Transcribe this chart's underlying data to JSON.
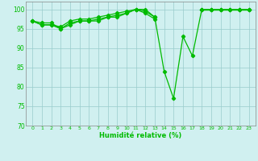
{
  "series": [
    [
      97,
      96,
      96,
      95,
      96,
      97,
      97,
      97,
      98,
      98,
      99,
      100,
      100,
      98,
      84,
      77,
      93,
      88,
      100,
      100,
      100,
      100,
      100,
      100
    ],
    [
      97,
      96,
      96,
      95.5,
      97,
      97.5,
      97.5,
      98,
      98.5,
      99,
      99.5,
      100,
      99,
      97.5,
      null,
      null,
      null,
      null,
      100,
      100,
      100,
      100,
      100,
      100
    ],
    [
      97,
      96.5,
      96.5,
      95,
      96.5,
      97,
      97,
      97.5,
      98,
      98.5,
      99,
      100,
      99.5,
      98,
      null,
      null,
      null,
      null,
      100,
      100,
      100,
      100,
      100,
      100
    ]
  ],
  "x": [
    0,
    1,
    2,
    3,
    4,
    5,
    6,
    7,
    8,
    9,
    10,
    11,
    12,
    13,
    14,
    15,
    16,
    17,
    18,
    19,
    20,
    21,
    22,
    23
  ],
  "line_color": "#00BB00",
  "bg_color": "#D0F0F0",
  "grid_color": "#99CCCC",
  "xlabel": "Humidité relative (%)",
  "ylim": [
    70,
    102
  ],
  "yticks": [
    70,
    75,
    80,
    85,
    90,
    95,
    100
  ],
  "xtick_labels": [
    "0",
    "1",
    "2",
    "3",
    "4",
    "5",
    "6",
    "7",
    "8",
    "9",
    "10",
    "11",
    "12",
    "13",
    "14",
    "15",
    "16",
    "17",
    "18",
    "19",
    "20",
    "21",
    "22",
    "23"
  ]
}
